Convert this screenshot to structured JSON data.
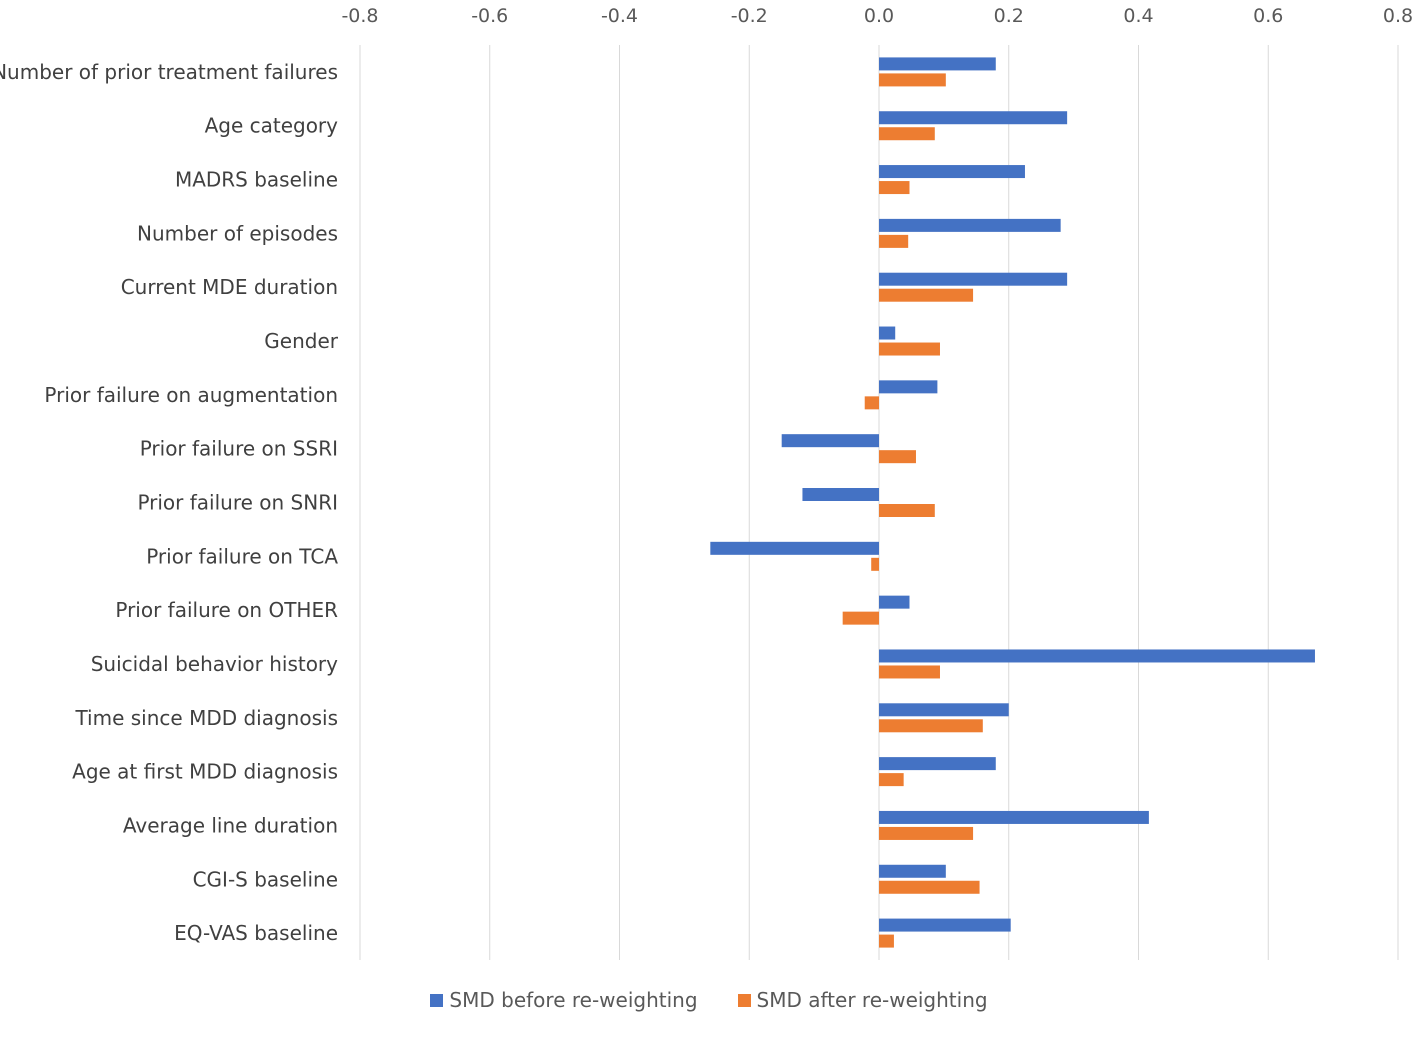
{
  "chart_data": {
    "type": "bar",
    "orientation": "horizontal",
    "title": "",
    "xlabel": "",
    "ylabel": "",
    "xlim": [
      -0.8,
      0.8
    ],
    "xticks": [
      "-0.8",
      "-0.6",
      "-0.4",
      "-0.2",
      "0.0",
      "0.2",
      "0.4",
      "0.6",
      "0.8"
    ],
    "xtick_values": [
      -0.8,
      -0.6,
      -0.4,
      -0.2,
      0.0,
      0.2,
      0.4,
      0.6,
      0.8
    ],
    "grid": true,
    "legend_position": "bottom",
    "categories": [
      "Number of prior treatment failures",
      "Age category",
      "MADRS baseline",
      "Number of episodes",
      "Current MDE duration",
      "Gender",
      "Prior failure on augmentation",
      "Prior failure on SSRI",
      "Prior failure on SNRI",
      "Prior failure on TCA",
      "Prior failure on OTHER",
      "Suicidal behavior history",
      "Time since MDD diagnosis",
      "Age at first MDD diagnosis",
      "Average line duration",
      "CGI-S baseline",
      "EQ-VAS baseline"
    ],
    "series": [
      {
        "name": "SMD before re-weighting",
        "color": "#4472C4",
        "values": [
          0.18,
          0.29,
          0.225,
          0.28,
          0.29,
          0.025,
          0.09,
          -0.15,
          -0.118,
          -0.26,
          0.047,
          0.672,
          0.2,
          0.18,
          0.416,
          0.103,
          0.203
        ]
      },
      {
        "name": "SMD after re-weighting",
        "color": "#ED7D31",
        "values": [
          0.103,
          0.086,
          0.047,
          0.045,
          0.145,
          0.094,
          -0.022,
          0.057,
          0.086,
          -0.012,
          -0.056,
          0.094,
          0.16,
          0.038,
          0.145,
          0.155,
          0.023
        ]
      }
    ]
  }
}
